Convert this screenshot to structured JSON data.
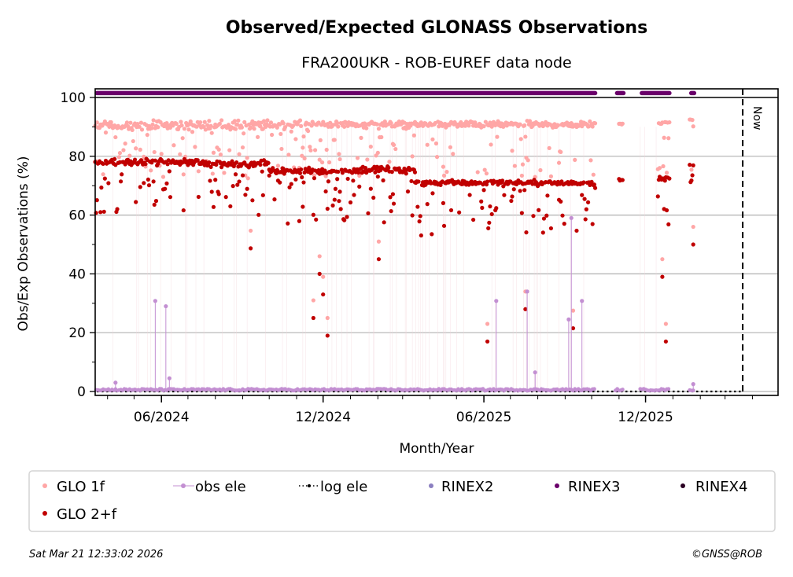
{
  "chart_data": {
    "type": "scatter",
    "title": "Observed/Expected GLONASS Observations",
    "subtitle": "FRA200UKR - ROB-EUREF data node",
    "xlabel": "Month/Year",
    "ylabel": "Obs/Exp Observations (%)",
    "xlim": [
      "2024-03-18",
      "2026-04-30"
    ],
    "ylim": [
      -1,
      103
    ],
    "y_ticks": [
      0,
      20,
      40,
      60,
      80,
      100
    ],
    "y_minor_ticks": [
      10,
      30,
      50,
      70,
      90
    ],
    "x_tick_labels": [
      "06/2024",
      "12/2024",
      "06/2025",
      "12/2025"
    ],
    "x_ticks": [
      "2024-06-01",
      "2024-12-01",
      "2025-06-01",
      "2025-12-01"
    ],
    "x_minor_tick_interval": "1 month",
    "grid": "horizontal",
    "now_marker": {
      "date": "2026-03-21",
      "label": "Now"
    },
    "legend_placement": "below",
    "series": [
      {
        "name": "GLO 1f",
        "color": "#ffa6a6",
        "typical_value": 90.5,
        "segments": [
          {
            "from": "2024-03-18",
            "to": "2024-10-15",
            "median": 90.5,
            "spread": 2.5,
            "outlier_rate": 0.25
          },
          {
            "from": "2024-10-15",
            "to": "2025-02-20",
            "median": 91.0,
            "spread": 1.5,
            "outlier_rate": 0.3
          },
          {
            "from": "2025-02-20",
            "to": "2025-10-05",
            "median": 90.8,
            "spread": 1.5,
            "outlier_rate": 0.2
          },
          {
            "from": "2025-11-01",
            "to": "2025-11-05",
            "median": 91.0,
            "spread": 0.5,
            "outlier_rate": 0
          },
          {
            "from": "2025-12-15",
            "to": "2026-01-05",
            "median": 91.5,
            "spread": 0.6,
            "outlier_rate": 0.3
          },
          {
            "from": "2026-01-20",
            "to": "2026-01-24",
            "median": 92.5,
            "spread": 0.3,
            "outlier_rate": 0.4
          }
        ]
      },
      {
        "name": "GLO 2+f",
        "color": "#c00000",
        "typical_value": 75,
        "segments": [
          {
            "from": "2024-03-18",
            "to": "2024-07-15",
            "median": 78.0,
            "spread": 1.5,
            "outlier_rate": 0.2
          },
          {
            "from": "2024-07-15",
            "to": "2024-10-01",
            "median": 77.5,
            "spread": 1.5,
            "outlier_rate": 0.25
          },
          {
            "from": "2024-10-01",
            "to": "2025-01-05",
            "median": 75.0,
            "spread": 1.5,
            "outlier_rate": 0.3
          },
          {
            "from": "2025-01-05",
            "to": "2025-03-15",
            "median": 75.5,
            "spread": 2.0,
            "outlier_rate": 0.3
          },
          {
            "from": "2025-03-15",
            "to": "2025-10-05",
            "median": 71.0,
            "spread": 1.2,
            "outlier_rate": 0.25
          },
          {
            "from": "2025-11-01",
            "to": "2025-11-05",
            "median": 72.0,
            "spread": 0.6,
            "outlier_rate": 0
          },
          {
            "from": "2025-12-15",
            "to": "2026-01-05",
            "median": 72.5,
            "spread": 1.0,
            "outlier_rate": 0.4
          },
          {
            "from": "2026-01-20",
            "to": "2026-01-24",
            "median": 77.0,
            "spread": 0.5,
            "outlier_rate": 0.4
          }
        ],
        "notable_low_points": [
          {
            "date": "2024-09-10",
            "value": 48.7
          },
          {
            "date": "2024-11-27",
            "value": 40.0
          },
          {
            "date": "2024-12-01",
            "value": 33.0
          },
          {
            "date": "2024-12-06",
            "value": 19.0
          },
          {
            "date": "2024-11-20",
            "value": 25.0
          },
          {
            "date": "2025-02-02",
            "value": 45.0
          },
          {
            "date": "2025-06-05",
            "value": 17.0
          },
          {
            "date": "2025-07-18",
            "value": 28.0
          },
          {
            "date": "2025-09-10",
            "value": 21.5
          },
          {
            "date": "2025-12-20",
            "value": 39.0
          },
          {
            "date": "2025-12-24",
            "value": 17.0
          },
          {
            "date": "2026-01-24",
            "value": 50.0
          }
        ]
      },
      {
        "name": "obs ele",
        "color": "#c38fd2",
        "typical_value": 0,
        "spikes": [
          {
            "date": "2024-05-25",
            "value": 30.8
          },
          {
            "date": "2024-06-06",
            "value": 29.0
          },
          {
            "date": "2024-06-10",
            "value": 4.5
          },
          {
            "date": "2024-04-10",
            "value": 3.0
          },
          {
            "date": "2025-06-15",
            "value": 30.8
          },
          {
            "date": "2025-07-20",
            "value": 34.0
          },
          {
            "date": "2025-07-29",
            "value": 6.5
          },
          {
            "date": "2025-09-05",
            "value": 24.5
          },
          {
            "date": "2025-09-08",
            "value": 59.0
          },
          {
            "date": "2025-09-20",
            "value": 30.8
          },
          {
            "date": "2026-01-24",
            "value": 2.5
          }
        ]
      },
      {
        "name": "log ele",
        "color": "#000000",
        "style": "dotted",
        "value": 0
      },
      {
        "name": "RINEX2",
        "color": "#8b7fc0",
        "present": false
      },
      {
        "name": "RINEX3",
        "color": "#6a006a",
        "band_value": 101.5,
        "coverage": [
          {
            "from": "2024-03-18",
            "to": "2025-10-05"
          },
          {
            "from": "2025-10-28",
            "to": "2025-11-06"
          },
          {
            "from": "2025-11-25",
            "to": "2025-12-28"
          },
          {
            "from": "2026-01-20",
            "to": "2026-01-25"
          }
        ]
      },
      {
        "name": "RINEX4",
        "color": "#2a0022",
        "present": false
      }
    ]
  },
  "footer": {
    "timestamp": "Sat Mar 21 12:33:02 2026",
    "copyright": "©GNSS@ROB"
  }
}
